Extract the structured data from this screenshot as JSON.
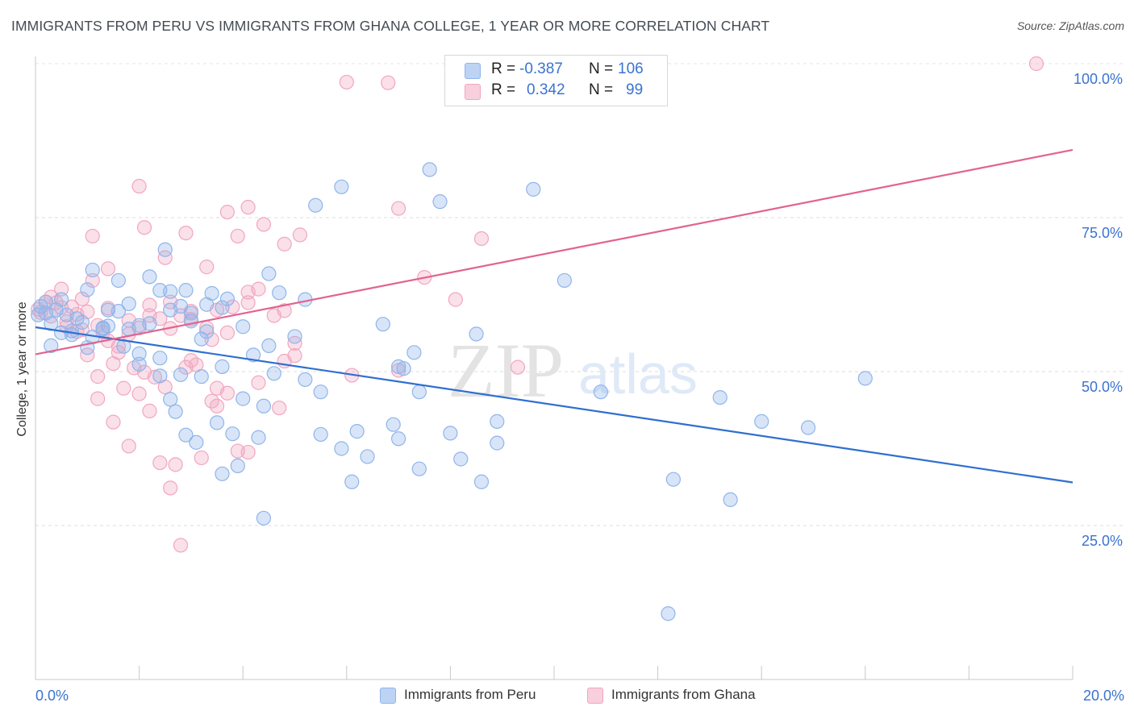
{
  "title": "IMMIGRANTS FROM PERU VS IMMIGRANTS FROM GHANA COLLEGE, 1 YEAR OR MORE CORRELATION CHART",
  "source": "Source: ZipAtlas.com",
  "watermark": {
    "zip": "ZIP",
    "atlas": "atlas"
  },
  "legend": {
    "peru": {
      "r_label": "R = ",
      "r_value": "-0.387",
      "n_label": "N = ",
      "n_value": "106"
    },
    "ghana": {
      "r_label": "R = ",
      "r_value": "0.342",
      "n_label": "N = ",
      "n_value": "99"
    }
  },
  "bottom_legend": {
    "peru": "Immigrants from Peru",
    "ghana": "Immigrants from Ghana"
  },
  "chart_data": {
    "type": "scatter",
    "title": "IMMIGRANTS FROM PERU VS IMMIGRANTS FROM GHANA COLLEGE, 1 YEAR OR MORE CORRELATION CHART",
    "xlabel": "",
    "ylabel": "College, 1 year or more",
    "xlim": [
      0,
      20
    ],
    "ylim": [
      0,
      105
    ],
    "x_tick_labels": [
      "0.0%",
      "20.0%"
    ],
    "y_ticks": [
      25,
      50,
      75,
      100
    ],
    "y_tick_labels": [
      "25.0%",
      "50.0%",
      "75.0%",
      "100.0%"
    ],
    "grid": true,
    "legend_position": "top-center",
    "colors": {
      "peru": "#8fb5ea",
      "ghana": "#f2a6c0",
      "peru_line": "#2f6fd0",
      "ghana_line": "#e2638f",
      "tick_text": "#3b73d1"
    },
    "series": [
      {
        "name": "Immigrants from Peru",
        "key": "peru",
        "R": -0.387,
        "N": 106,
        "trend": [
          [
            0,
            57.2
          ],
          [
            20,
            32.0
          ]
        ],
        "points": [
          [
            0.05,
            59.2
          ],
          [
            0.1,
            60.6
          ],
          [
            0.2,
            59.5
          ],
          [
            0.3,
            57.8
          ],
          [
            0.5,
            56.3
          ],
          [
            0.7,
            56.0
          ],
          [
            0.9,
            58.0
          ],
          [
            1.1,
            55.6
          ],
          [
            1.3,
            57.1
          ],
          [
            1.4,
            60.0
          ],
          [
            1.6,
            59.8
          ],
          [
            1.8,
            61.0
          ],
          [
            2.0,
            57.5
          ],
          [
            2.2,
            65.4
          ],
          [
            2.4,
            63.2
          ],
          [
            2.6,
            60.0
          ],
          [
            2.8,
            60.6
          ],
          [
            3.0,
            59.5
          ],
          [
            3.2,
            55.3
          ],
          [
            3.4,
            62.7
          ],
          [
            3.7,
            61.8
          ],
          [
            4.0,
            57.3
          ],
          [
            4.5,
            54.2
          ],
          [
            5.0,
            55.7
          ],
          [
            0.3,
            54.2
          ],
          [
            0.7,
            56.6
          ],
          [
            1.0,
            53.9
          ],
          [
            1.3,
            56.9
          ],
          [
            1.7,
            54.1
          ],
          [
            2.0,
            51.2
          ],
          [
            2.4,
            52.2
          ],
          [
            2.8,
            49.5
          ],
          [
            3.2,
            49.2
          ],
          [
            3.6,
            50.8
          ],
          [
            4.2,
            52.7
          ],
          [
            0.4,
            60.0
          ],
          [
            0.8,
            58.6
          ],
          [
            1.1,
            66.5
          ],
          [
            1.6,
            64.8
          ],
          [
            2.5,
            69.8
          ],
          [
            2.6,
            63.0
          ],
          [
            2.9,
            63.2
          ],
          [
            3.0,
            58.2
          ],
          [
            3.3,
            60.9
          ],
          [
            4.5,
            65.9
          ],
          [
            4.7,
            62.8
          ],
          [
            5.2,
            61.7
          ],
          [
            0.6,
            59.2
          ],
          [
            1.0,
            63.3
          ],
          [
            1.8,
            56.9
          ],
          [
            2.2,
            57.8
          ],
          [
            2.4,
            49.3
          ],
          [
            2.6,
            45.5
          ],
          [
            2.7,
            43.5
          ],
          [
            2.9,
            39.7
          ],
          [
            3.1,
            38.5
          ],
          [
            3.5,
            41.7
          ],
          [
            3.8,
            39.9
          ],
          [
            4.0,
            45.6
          ],
          [
            4.4,
            44.4
          ],
          [
            4.3,
            39.3
          ],
          [
            3.6,
            33.4
          ],
          [
            3.9,
            34.7
          ],
          [
            4.4,
            26.2
          ],
          [
            5.2,
            48.7
          ],
          [
            5.5,
            46.7
          ],
          [
            5.5,
            39.8
          ],
          [
            5.9,
            37.5
          ],
          [
            6.1,
            32.1
          ],
          [
            6.4,
            36.2
          ],
          [
            6.2,
            40.3
          ],
          [
            6.9,
            41.4
          ],
          [
            6.7,
            57.7
          ],
          [
            7.0,
            50.8
          ],
          [
            7.3,
            53.1
          ],
          [
            7.1,
            50.5
          ],
          [
            7.4,
            46.7
          ],
          [
            7.4,
            34.2
          ],
          [
            7.0,
            39.1
          ],
          [
            8.0,
            40.0
          ],
          [
            8.2,
            35.8
          ],
          [
            8.5,
            56.1
          ],
          [
            8.6,
            32.1
          ],
          [
            8.9,
            38.4
          ],
          [
            8.9,
            41.9
          ],
          [
            5.4,
            77.0
          ],
          [
            5.9,
            80.0
          ],
          [
            7.6,
            82.8
          ],
          [
            7.8,
            77.6
          ],
          [
            9.6,
            79.6
          ],
          [
            10.2,
            64.8
          ],
          [
            10.9,
            46.7
          ],
          [
            12.3,
            32.5
          ],
          [
            13.2,
            45.8
          ],
          [
            13.4,
            29.2
          ],
          [
            14.0,
            41.9
          ],
          [
            14.9,
            40.9
          ],
          [
            16.0,
            48.9
          ],
          [
            12.2,
            10.7
          ],
          [
            3.6,
            60.4
          ],
          [
            2.0,
            52.9
          ],
          [
            1.4,
            57.4
          ],
          [
            3.3,
            56.5
          ],
          [
            0.2,
            61.3
          ],
          [
            0.5,
            61.7
          ],
          [
            4.6,
            49.7
          ]
        ]
      },
      {
        "name": "Immigrants from Ghana",
        "key": "ghana",
        "R": 0.342,
        "N": 99,
        "trend": [
          [
            0,
            52.8
          ],
          [
            20,
            86.0
          ]
        ],
        "points": [
          [
            0.05,
            60.1
          ],
          [
            0.1,
            59.6
          ],
          [
            0.2,
            61.3
          ],
          [
            0.3,
            59.0
          ],
          [
            0.4,
            61.2
          ],
          [
            0.5,
            60.4
          ],
          [
            0.6,
            58.1
          ],
          [
            0.7,
            60.5
          ],
          [
            0.8,
            59.3
          ],
          [
            0.9,
            56.8
          ],
          [
            1.0,
            59.7
          ],
          [
            1.2,
            57.5
          ],
          [
            1.3,
            56.4
          ],
          [
            1.4,
            55.0
          ],
          [
            1.6,
            54.1
          ],
          [
            1.8,
            58.3
          ],
          [
            2.0,
            57.1
          ],
          [
            2.2,
            60.8
          ],
          [
            2.4,
            58.6
          ],
          [
            2.6,
            61.3
          ],
          [
            2.8,
            59.1
          ],
          [
            3.0,
            58.5
          ],
          [
            3.3,
            57.1
          ],
          [
            3.5,
            60.0
          ],
          [
            3.8,
            60.5
          ],
          [
            4.1,
            61.2
          ],
          [
            0.5,
            63.4
          ],
          [
            0.9,
            61.8
          ],
          [
            1.1,
            64.8
          ],
          [
            1.4,
            60.3
          ],
          [
            1.8,
            56.1
          ],
          [
            2.2,
            59.1
          ],
          [
            2.6,
            57.0
          ],
          [
            3.0,
            51.8
          ],
          [
            3.4,
            55.2
          ],
          [
            3.7,
            56.3
          ],
          [
            4.1,
            62.9
          ],
          [
            4.3,
            63.4
          ],
          [
            4.8,
            59.9
          ],
          [
            5.0,
            54.6
          ],
          [
            0.8,
            56.5
          ],
          [
            1.0,
            52.7
          ],
          [
            1.2,
            49.2
          ],
          [
            1.5,
            51.3
          ],
          [
            1.7,
            47.3
          ],
          [
            1.9,
            50.6
          ],
          [
            2.1,
            49.9
          ],
          [
            2.3,
            49.1
          ],
          [
            2.5,
            47.5
          ],
          [
            2.9,
            50.7
          ],
          [
            3.1,
            51.1
          ],
          [
            3.5,
            47.3
          ],
          [
            3.7,
            46.5
          ],
          [
            4.3,
            48.2
          ],
          [
            4.7,
            44.1
          ],
          [
            4.8,
            51.7
          ],
          [
            5.0,
            52.6
          ],
          [
            1.2,
            45.6
          ],
          [
            1.5,
            41.8
          ],
          [
            1.8,
            37.9
          ],
          [
            2.2,
            43.6
          ],
          [
            2.4,
            35.2
          ],
          [
            2.6,
            31.1
          ],
          [
            2.7,
            34.9
          ],
          [
            2.8,
            21.8
          ],
          [
            3.2,
            36.0
          ],
          [
            3.5,
            44.4
          ],
          [
            3.9,
            37.1
          ],
          [
            4.1,
            36.9
          ],
          [
            1.1,
            72.0
          ],
          [
            1.4,
            66.7
          ],
          [
            2.0,
            80.1
          ],
          [
            2.1,
            73.4
          ],
          [
            2.5,
            68.5
          ],
          [
            2.9,
            72.5
          ],
          [
            3.3,
            67.0
          ],
          [
            3.7,
            75.9
          ],
          [
            3.9,
            72.0
          ],
          [
            4.1,
            76.7
          ],
          [
            4.4,
            73.9
          ],
          [
            4.8,
            70.7
          ],
          [
            5.1,
            72.2
          ],
          [
            6.0,
            97.0
          ],
          [
            6.8,
            96.9
          ],
          [
            7.0,
            76.5
          ],
          [
            7.5,
            65.3
          ],
          [
            8.1,
            61.7
          ],
          [
            8.6,
            71.6
          ],
          [
            9.3,
            50.7
          ],
          [
            19.3,
            100.0
          ],
          [
            6.1,
            49.4
          ],
          [
            7.0,
            50.2
          ],
          [
            3.0,
            59.8
          ],
          [
            1.6,
            53.1
          ],
          [
            2.0,
            46.4
          ],
          [
            3.4,
            45.2
          ],
          [
            0.3,
            62.1
          ],
          [
            0.6,
            57.3
          ],
          [
            4.6,
            59.1
          ]
        ]
      }
    ]
  }
}
